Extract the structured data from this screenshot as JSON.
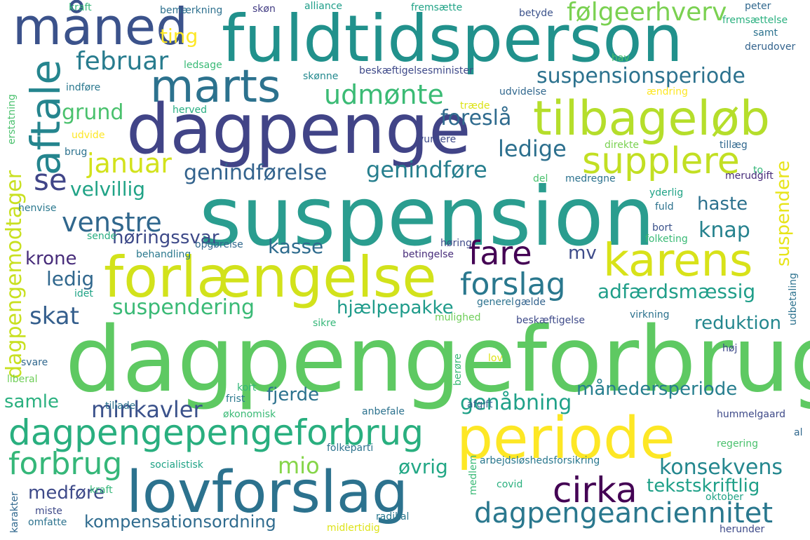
{
  "word_cloud": {
    "words": [
      {
        "text": "fuldtidsperson",
        "color": "#21918c"
      },
      {
        "text": "dagpenge",
        "color": "#414487"
      },
      {
        "text": "suspension",
        "color": "#2a9d8f"
      },
      {
        "text": "dagpengeforbrug",
        "color": "#5ec962"
      },
      {
        "text": "lovforslag",
        "color": "#2c728e"
      },
      {
        "text": "periode",
        "color": "#fde725"
      },
      {
        "text": "forlængelse",
        "color": "#d2e21b"
      },
      {
        "text": "måned",
        "color": "#3b528b"
      },
      {
        "text": "marts",
        "color": "#2c728e"
      },
      {
        "text": "tilbageløb",
        "color": "#b5de2b"
      },
      {
        "text": "karens",
        "color": "#d8e219"
      },
      {
        "text": "aftale",
        "color": "#25858e"
      },
      {
        "text": "supplere",
        "color": "#c2df23"
      },
      {
        "text": "dagpengepengeforbrug",
        "color": "#29af7f"
      },
      {
        "text": "cirka",
        "color": "#440154"
      },
      {
        "text": "fare",
        "color": "#440154"
      },
      {
        "text": "forslag",
        "color": "#2a788e"
      },
      {
        "text": "forbrug",
        "color": "#35b779"
      },
      {
        "text": "dagpengeanciennitet",
        "color": "#2a788e"
      },
      {
        "text": "følgeerhverv",
        "color": "#7ad151"
      },
      {
        "text": "suspensionsperiode",
        "color": "#2c728e"
      },
      {
        "text": "udmønte",
        "color": "#3bbb75"
      },
      {
        "text": "februar",
        "color": "#287c8e"
      },
      {
        "text": "januar",
        "color": "#d2e21b"
      },
      {
        "text": "venstre",
        "color": "#30678d"
      },
      {
        "text": "se",
        "color": "#404588"
      },
      {
        "text": "genindførelse",
        "color": "#33638d"
      },
      {
        "text": "genindføre",
        "color": "#277f8e"
      },
      {
        "text": "ledige",
        "color": "#2d708e"
      },
      {
        "text": "foreslå",
        "color": "#2f6b8e"
      },
      {
        "text": "grund",
        "color": "#4ac16d"
      },
      {
        "text": "velvillig",
        "color": "#20a386"
      },
      {
        "text": "haste",
        "color": "#2c718e"
      },
      {
        "text": "knap",
        "color": "#26828e"
      },
      {
        "text": "høringssvar",
        "color": "#3e4a89"
      },
      {
        "text": "kasse",
        "color": "#2f6c8e"
      },
      {
        "text": "krone",
        "color": "#472c7a"
      },
      {
        "text": "ledig",
        "color": "#31688e"
      },
      {
        "text": "mv",
        "color": "#3e4c8a"
      },
      {
        "text": "adfærdsmæssig",
        "color": "#1f9e89"
      },
      {
        "text": "suspendering",
        "color": "#3aba76"
      },
      {
        "text": "hjælpepakke",
        "color": "#1e9b8a"
      },
      {
        "text": "skat",
        "color": "#355f8d"
      },
      {
        "text": "reduktion",
        "color": "#24878e"
      },
      {
        "text": "månedersperiode",
        "color": "#277e8e"
      },
      {
        "text": "genåbning",
        "color": "#1fa188"
      },
      {
        "text": "fjerde",
        "color": "#2c728e"
      },
      {
        "text": "samle",
        "color": "#2ab07f"
      },
      {
        "text": "minkavler",
        "color": "#3b528b"
      },
      {
        "text": "mio",
        "color": "#86d549"
      },
      {
        "text": "øvrig",
        "color": "#22a785"
      },
      {
        "text": "konsekvens",
        "color": "#24878e"
      },
      {
        "text": "tekstskriftlig",
        "color": "#1fa088"
      },
      {
        "text": "medføre",
        "color": "#3e4a89"
      },
      {
        "text": "kompensationsordning",
        "color": "#2f6b8e"
      },
      {
        "text": "ting",
        "color": "#fde725"
      },
      {
        "text": "dagpengemodtager",
        "color": "#c8e020"
      },
      {
        "text": "suspendere",
        "color": "#e7e419"
      },
      {
        "text": "kraft",
        "color": "#35b779"
      },
      {
        "text": "bemærkning",
        "color": "#2d708e"
      },
      {
        "text": "skøn",
        "color": "#433d84"
      },
      {
        "text": "alliance",
        "color": "#1f9e89"
      },
      {
        "text": "fremsætte",
        "color": "#20a386"
      },
      {
        "text": "betyde",
        "color": "#3b528b"
      },
      {
        "text": "peter",
        "color": "#31688e"
      },
      {
        "text": "fremsættelse",
        "color": "#2ab07f"
      },
      {
        "text": "samt",
        "color": "#2c728e"
      },
      {
        "text": "derudover",
        "color": "#33638d"
      },
      {
        "text": "ledsage",
        "color": "#3aba76"
      },
      {
        "text": "hav",
        "color": "#4ac16d"
      },
      {
        "text": "skønne",
        "color": "#23898e"
      },
      {
        "text": "beskæftigelsesminister",
        "color": "#3e4989"
      },
      {
        "text": "indføre",
        "color": "#2a788e"
      },
      {
        "text": "udvidelse",
        "color": "#31688e"
      },
      {
        "text": "ændring",
        "color": "#fde725"
      },
      {
        "text": "herved",
        "color": "#27ad81"
      },
      {
        "text": "træde",
        "color": "#dde318"
      },
      {
        "text": "erstatning",
        "color": "#4ac16d"
      },
      {
        "text": "udvide",
        "color": "#fde725"
      },
      {
        "text": "vurdere",
        "color": "#3e4a89"
      },
      {
        "text": "brug",
        "color": "#2c728e"
      },
      {
        "text": "direkte",
        "color": "#7ad151"
      },
      {
        "text": "tillæg",
        "color": "#31688e"
      },
      {
        "text": "to",
        "color": "#35b779"
      },
      {
        "text": "del",
        "color": "#4ac16d"
      },
      {
        "text": "medregne",
        "color": "#2c728e"
      },
      {
        "text": "merudgift",
        "color": "#472c7a"
      },
      {
        "text": "yderlig",
        "color": "#20a386"
      },
      {
        "text": "fuld",
        "color": "#2c728e"
      },
      {
        "text": "henvise",
        "color": "#2a788e"
      },
      {
        "text": "bort",
        "color": "#3b528b"
      },
      {
        "text": "sende",
        "color": "#27ad81"
      },
      {
        "text": "opgørelse",
        "color": "#31688e"
      },
      {
        "text": "høring",
        "color": "#3e4a89"
      },
      {
        "text": "folketing",
        "color": "#3aba76"
      },
      {
        "text": "behandling",
        "color": "#2a788e"
      },
      {
        "text": "betingelse",
        "color": "#472c7a"
      },
      {
        "text": "idet",
        "color": "#20a386"
      },
      {
        "text": "generel",
        "color": "#2c728e"
      },
      {
        "text": "gælde",
        "color": "#33638d"
      },
      {
        "text": "udbetaling",
        "color": "#2c728e"
      },
      {
        "text": "sikre",
        "color": "#35b779"
      },
      {
        "text": "mulighed",
        "color": "#6ece58"
      },
      {
        "text": "beskæftigelse",
        "color": "#3e4a89"
      },
      {
        "text": "virkning",
        "color": "#2c728e"
      },
      {
        "text": "høj",
        "color": "#3e4a89"
      },
      {
        "text": "svare",
        "color": "#31688e"
      },
      {
        "text": "lov",
        "color": "#dde318"
      },
      {
        "text": "liberal",
        "color": "#6ece58"
      },
      {
        "text": "berøre",
        "color": "#3aba76"
      },
      {
        "text": "tillade",
        "color": "#2c728e"
      },
      {
        "text": "kort",
        "color": "#35b779"
      },
      {
        "text": "frist",
        "color": "#2a788e"
      },
      {
        "text": "afgift",
        "color": "#33638d"
      },
      {
        "text": "økonomisk",
        "color": "#3aba76"
      },
      {
        "text": "anbefale",
        "color": "#2c728e"
      },
      {
        "text": "hummelgaard",
        "color": "#3e4a89"
      },
      {
        "text": "al",
        "color": "#31688e"
      },
      {
        "text": "folkeparti",
        "color": "#2c728e"
      },
      {
        "text": "regering",
        "color": "#4ac16d"
      },
      {
        "text": "socialistisk",
        "color": "#20a386"
      },
      {
        "text": "arbejdsløshedsforsikring",
        "color": "#2a788e"
      },
      {
        "text": "medlem",
        "color": "#3aba76"
      },
      {
        "text": "karakter",
        "color": "#31688e"
      },
      {
        "text": "kraft",
        "color": "#35b779"
      },
      {
        "text": "covid",
        "color": "#2ab07f"
      },
      {
        "text": "oktober",
        "color": "#20a386"
      },
      {
        "text": "miste",
        "color": "#3e4a89"
      },
      {
        "text": "omfatte",
        "color": "#2c728e"
      },
      {
        "text": "radikal",
        "color": "#2a788e"
      },
      {
        "text": "midlertidig",
        "color": "#dde318"
      },
      {
        "text": "herunder",
        "color": "#3e4a89"
      }
    ]
  }
}
